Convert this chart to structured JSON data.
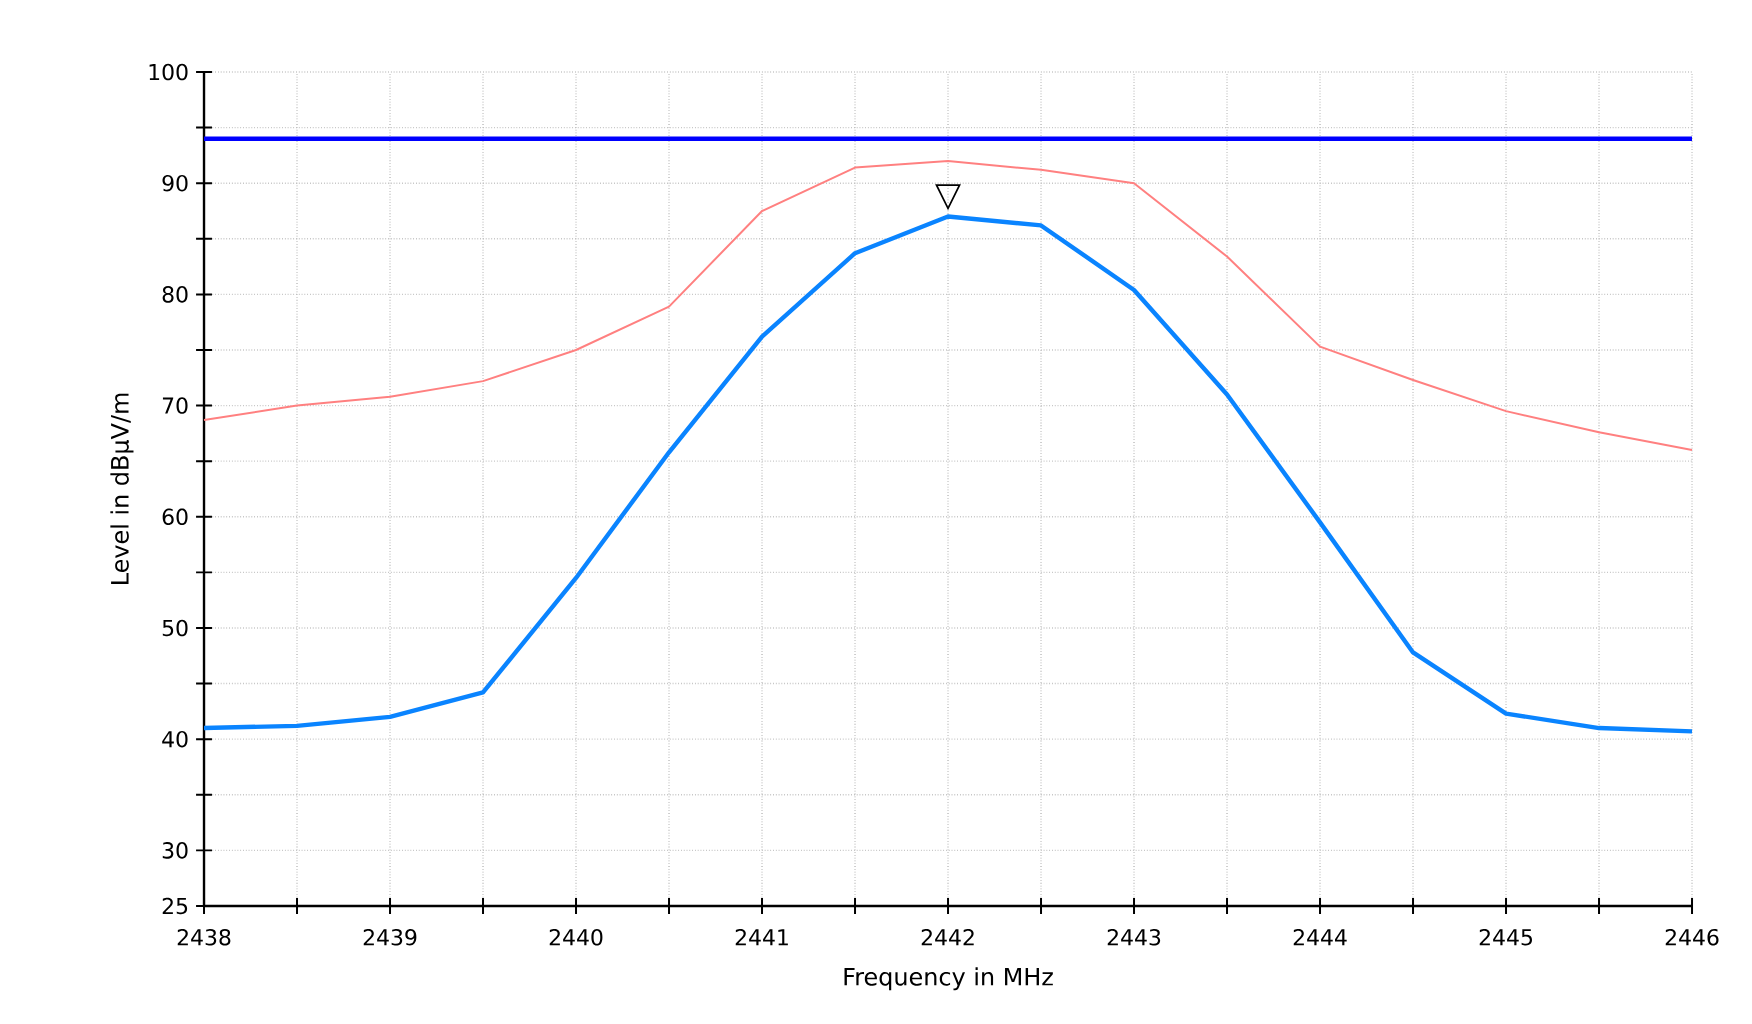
{
  "chart_data": {
    "type": "line",
    "xlabel": "Frequency in MHz",
    "ylabel": "Level in dBµV/m",
    "x": [
      2438,
      2438.5,
      2439,
      2439.5,
      2440,
      2440.5,
      2441,
      2441.5,
      2442,
      2442.5,
      2443,
      2443.5,
      2444,
      2444.5,
      2445,
      2445.5,
      2446
    ],
    "series": [
      {
        "color": "#ff8080",
        "values": [
          68.7,
          70,
          70.8,
          72.2,
          75,
          78.9,
          87.5,
          91.4,
          92,
          91.2,
          90,
          83.4,
          75.3,
          72.3,
          69.5,
          67.6,
          66
        ]
      },
      {
        "color": "#0a84ff",
        "values": [
          41,
          41.2,
          42,
          44.2,
          54.5,
          65.8,
          76.2,
          83.7,
          87,
          86.2,
          80.4,
          71,
          59.5,
          47.8,
          42.3,
          41,
          40.7
        ]
      }
    ],
    "ref_lines": [
      {
        "axis": "y",
        "value": 94,
        "color": "#0000ff"
      }
    ],
    "annotations": [
      {
        "text": "▽",
        "x": 2442,
        "y": 87
      }
    ],
    "xlim": [
      2438,
      2446
    ],
    "ylim": [
      25,
      100
    ],
    "xticks": [
      2438,
      {
        "value": 2438.5,
        "label": null
      },
      2439,
      {
        "value": 2439.5,
        "label": null
      },
      2440,
      {
        "value": 2440.5,
        "label": null
      },
      2441,
      {
        "value": 2441.5,
        "label": null
      },
      2442,
      {
        "value": 2442.5,
        "label": null
      },
      2443,
      {
        "value": 2443.5,
        "label": null
      },
      2444,
      {
        "value": 2444.5,
        "label": null
      },
      2445,
      {
        "value": 2445.5,
        "label": null
      },
      2446
    ],
    "yticks": [
      25,
      30,
      {
        "value": 35,
        "label": null
      },
      40,
      {
        "value": 45,
        "label": null
      },
      50,
      {
        "value": 55,
        "label": null
      },
      60,
      {
        "value": 65,
        "label": null
      },
      70,
      {
        "value": 75,
        "label": null
      },
      80,
      {
        "value": 85,
        "label": null
      },
      90,
      {
        "value": 95,
        "label": null
      },
      100
    ],
    "grid": true,
    "marker": "none",
    "line_style": "solid"
  }
}
